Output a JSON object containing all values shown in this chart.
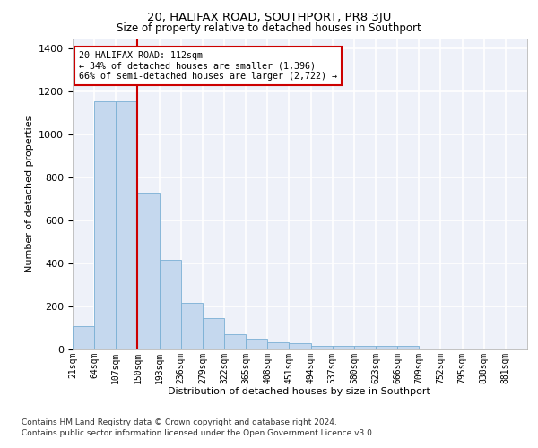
{
  "title": "20, HALIFAX ROAD, SOUTHPORT, PR8 3JU",
  "subtitle": "Size of property relative to detached houses in Southport",
  "xlabel": "Distribution of detached houses by size in Southport",
  "ylabel": "Number of detached properties",
  "footer_line1": "Contains HM Land Registry data © Crown copyright and database right 2024.",
  "footer_line2": "Contains public sector information licensed under the Open Government Licence v3.0.",
  "categories": [
    "21sqm",
    "64sqm",
    "107sqm",
    "150sqm",
    "193sqm",
    "236sqm",
    "279sqm",
    "322sqm",
    "365sqm",
    "408sqm",
    "451sqm",
    "494sqm",
    "537sqm",
    "580sqm",
    "623sqm",
    "666sqm",
    "709sqm",
    "752sqm",
    "795sqm",
    "838sqm",
    "881sqm"
  ],
  "bar_heights": [
    107,
    1155,
    1155,
    730,
    418,
    218,
    148,
    72,
    48,
    32,
    30,
    18,
    15,
    15,
    15,
    18,
    5,
    5,
    5,
    5,
    5
  ],
  "bar_color": "#c5d8ee",
  "bar_edge_color": "#7aafd4",
  "vline_color": "#cc0000",
  "vline_x_index": 2,
  "annotation_line1": "20 HALIFAX ROAD: 112sqm",
  "annotation_line2": "← 34% of detached houses are smaller (1,396)",
  "annotation_line3": "66% of semi-detached houses are larger (2,722) →",
  "ylim": [
    0,
    1450
  ],
  "yticks": [
    0,
    200,
    400,
    600,
    800,
    1000,
    1200,
    1400
  ],
  "background_color": "#eef1f9",
  "grid_color": "#ffffff"
}
